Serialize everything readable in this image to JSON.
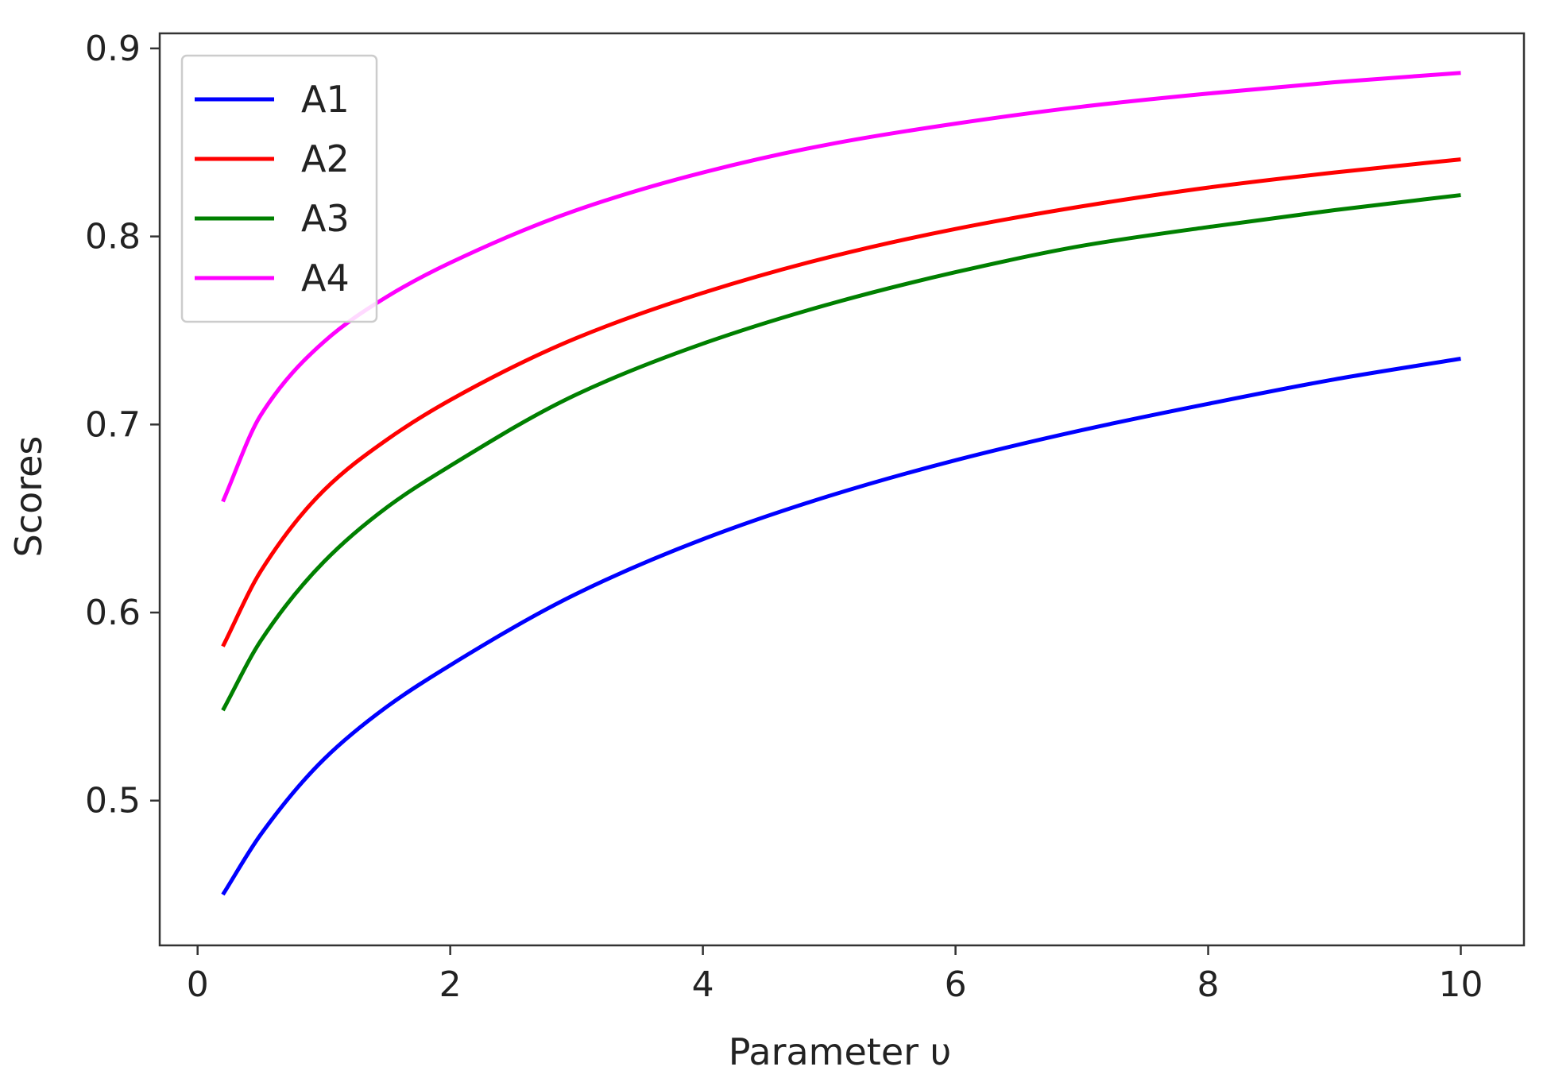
{
  "chart_data": {
    "type": "line",
    "xlabel": "Parameter υ",
    "ylabel": "Scores",
    "xlim": [
      -0.3,
      10.5
    ],
    "ylim": [
      0.423,
      0.908
    ],
    "xticks": [
      0,
      2,
      4,
      6,
      8,
      10
    ],
    "xtick_labels": [
      "0",
      "2",
      "4",
      "6",
      "8",
      "10"
    ],
    "yticks": [
      0.5,
      0.6,
      0.7,
      0.8,
      0.9
    ],
    "ytick_labels": [
      "0.5",
      "0.6",
      "0.7",
      "0.8",
      "0.9"
    ],
    "grid": false,
    "legend_position": "top-left",
    "x": [
      0.2,
      0.5,
      1,
      1.5,
      2,
      3,
      4,
      5,
      6,
      7,
      8,
      9,
      10
    ],
    "series": [
      {
        "name": "A1",
        "color": "#0000ff",
        "values": [
          0.45,
          0.482,
          0.522,
          0.55,
          0.572,
          0.61,
          0.639,
          0.662,
          0.681,
          0.697,
          0.711,
          0.724,
          0.735
        ]
      },
      {
        "name": "A2",
        "color": "#ff0000",
        "values": [
          0.582,
          0.622,
          0.665,
          0.692,
          0.713,
          0.746,
          0.77,
          0.789,
          0.804,
          0.816,
          0.826,
          0.834,
          0.841
        ]
      },
      {
        "name": "A3",
        "color": "#008000",
        "values": [
          0.548,
          0.585,
          0.627,
          0.656,
          0.678,
          0.716,
          0.743,
          0.764,
          0.781,
          0.795,
          0.805,
          0.814,
          0.822
        ]
      },
      {
        "name": "A4",
        "color": "#ff00ff",
        "values": [
          0.659,
          0.705,
          0.744,
          0.768,
          0.786,
          0.814,
          0.834,
          0.849,
          0.86,
          0.869,
          0.876,
          0.882,
          0.887
        ]
      }
    ]
  }
}
